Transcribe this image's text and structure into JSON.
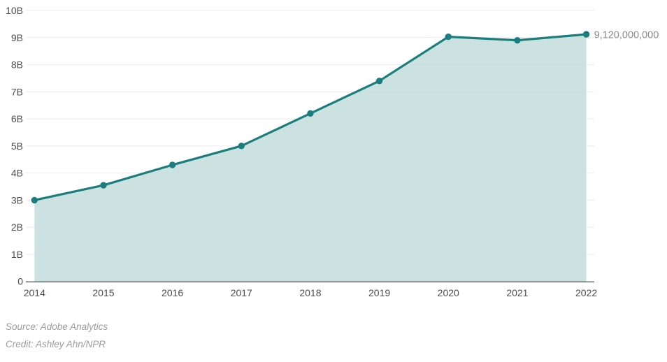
{
  "chart_data": {
    "type": "area",
    "title": "",
    "xlabel": "",
    "ylabel": "",
    "categories": [
      "2014",
      "2015",
      "2016",
      "2017",
      "2018",
      "2019",
      "2020",
      "2021",
      "2022"
    ],
    "values_billions": [
      3.0,
      3.55,
      4.3,
      5.0,
      6.2,
      7.4,
      9.03,
      8.9,
      9.12
    ],
    "end_point_label": "9,120,000,000",
    "y_tick_values_billions": [
      0,
      1,
      2,
      3,
      4,
      5,
      6,
      7,
      8,
      9,
      10
    ],
    "y_tick_labels": [
      "0",
      "1B",
      "2B",
      "3B",
      "4B",
      "5B",
      "6B",
      "7B",
      "8B",
      "9B",
      "10B"
    ],
    "ylim_billions": [
      0,
      10
    ],
    "grid": "horizontal",
    "legend": "none",
    "colors": {
      "line": "#1b7d7d",
      "marker": "#1b7d7d",
      "area_fill": "#c4dedd",
      "gridline": "#ebebeb",
      "axis_line": "#4a4a4a",
      "tick_label": "#4d4d4d",
      "end_label": "#8a8a8a",
      "footnote_text": "#9b9b9b"
    }
  },
  "footer": {
    "source": "Source: Adobe Analytics",
    "credit": "Credit: Ashley Ahn/NPR"
  }
}
